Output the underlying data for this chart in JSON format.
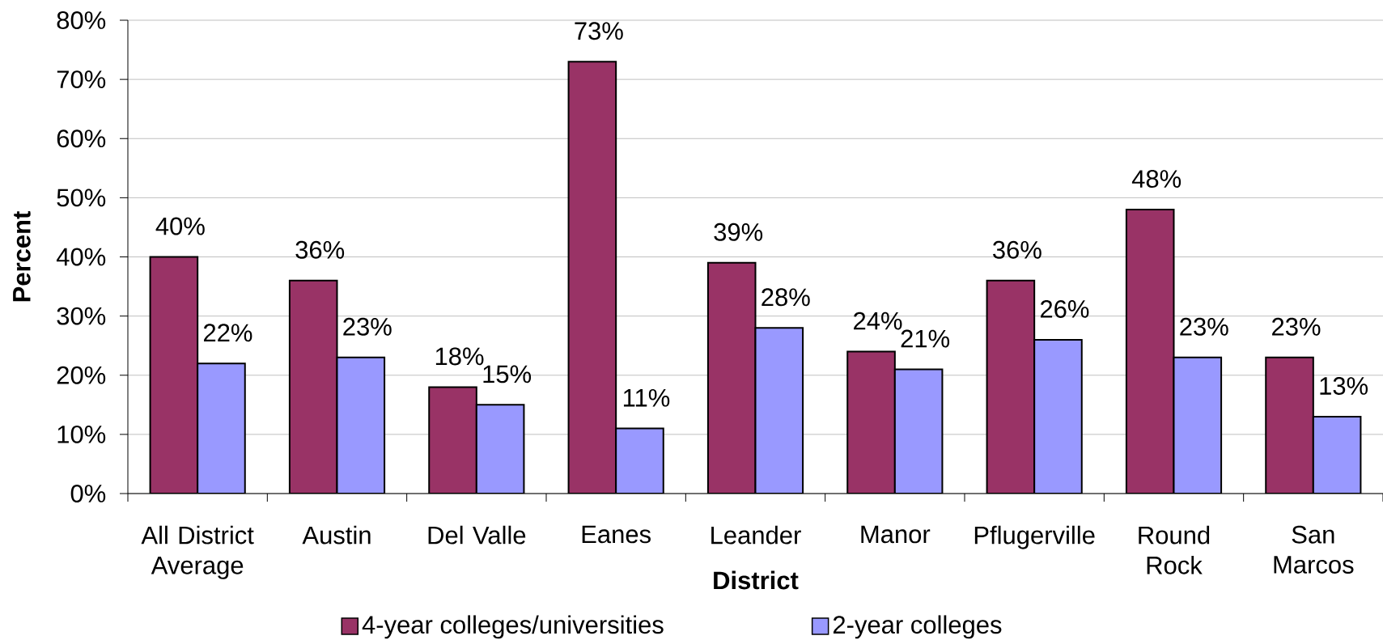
{
  "chart_data": {
    "type": "bar",
    "xlabel": "District",
    "ylabel": "Percent",
    "categories": [
      "All District Average",
      "Austin",
      "Del Valle",
      "Eanes",
      "Leander",
      "Manor",
      "Pflugerville",
      "Round Rock",
      "San Marcos"
    ],
    "series": [
      {
        "name": "4-year colleges/universities",
        "color": "#993366",
        "values": [
          40,
          36,
          18,
          73,
          39,
          24,
          36,
          48,
          23
        ],
        "value_labels": [
          "40%",
          "36%",
          "18%",
          "73%",
          "39%",
          "24%",
          "36%",
          "48%",
          "23%"
        ]
      },
      {
        "name": "2-year colleges",
        "color": "#9999ff",
        "values": [
          22,
          23,
          15,
          11,
          28,
          21,
          26,
          23,
          13
        ],
        "value_labels": [
          "22%",
          "23%",
          "15%",
          "11%",
          "28%",
          "21%",
          "26%",
          "23%",
          "13%"
        ]
      }
    ],
    "ylim": [
      0,
      80
    ],
    "yticks": [
      {
        "value": 0,
        "label": "0%"
      },
      {
        "value": 10,
        "label": "10%"
      },
      {
        "value": 20,
        "label": "20%"
      },
      {
        "value": 30,
        "label": "30%"
      },
      {
        "value": 40,
        "label": "40%"
      },
      {
        "value": 50,
        "label": "50%"
      },
      {
        "value": 60,
        "label": "60%"
      },
      {
        "value": 70,
        "label": "70%"
      },
      {
        "value": 80,
        "label": "80%"
      }
    ],
    "grid": "y",
    "legend": "bottom"
  }
}
